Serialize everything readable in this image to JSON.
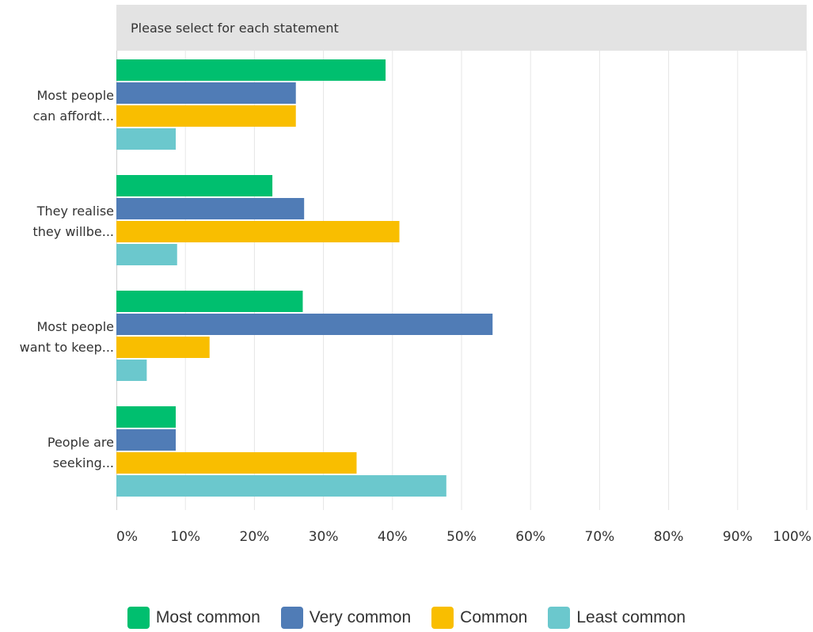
{
  "chart_data": {
    "type": "bar",
    "orientation": "horizontal",
    "header": "Please select for each statement",
    "categories": [
      [
        "Most  people",
        "can affordt..."
      ],
      [
        "They realise",
        "they willbe..."
      ],
      [
        "Most  people",
        "want to keep..."
      ],
      [
        "People are",
        "seeking..."
      ]
    ],
    "series": [
      {
        "name": "Most common",
        "color": "#00bf6f",
        "values": [
          39,
          22.6,
          27,
          8.6
        ]
      },
      {
        "name": "Very common",
        "color": "#507cb6",
        "values": [
          26,
          27.2,
          54.5,
          8.6
        ]
      },
      {
        "name": "Common",
        "color": "#f9be00",
        "values": [
          26,
          41,
          13.5,
          34.8
        ]
      },
      {
        "name": "Least common",
        "color": "#6bc8cd",
        "values": [
          8.6,
          8.8,
          4.4,
          47.8
        ]
      }
    ],
    "xticks": [
      "0%",
      "10%",
      "20%",
      "30%",
      "40%",
      "50%",
      "60%",
      "70%",
      "80%",
      "90%",
      "100%"
    ],
    "xlim": [
      0,
      100
    ],
    "grid": true,
    "legend_position": "bottom"
  }
}
